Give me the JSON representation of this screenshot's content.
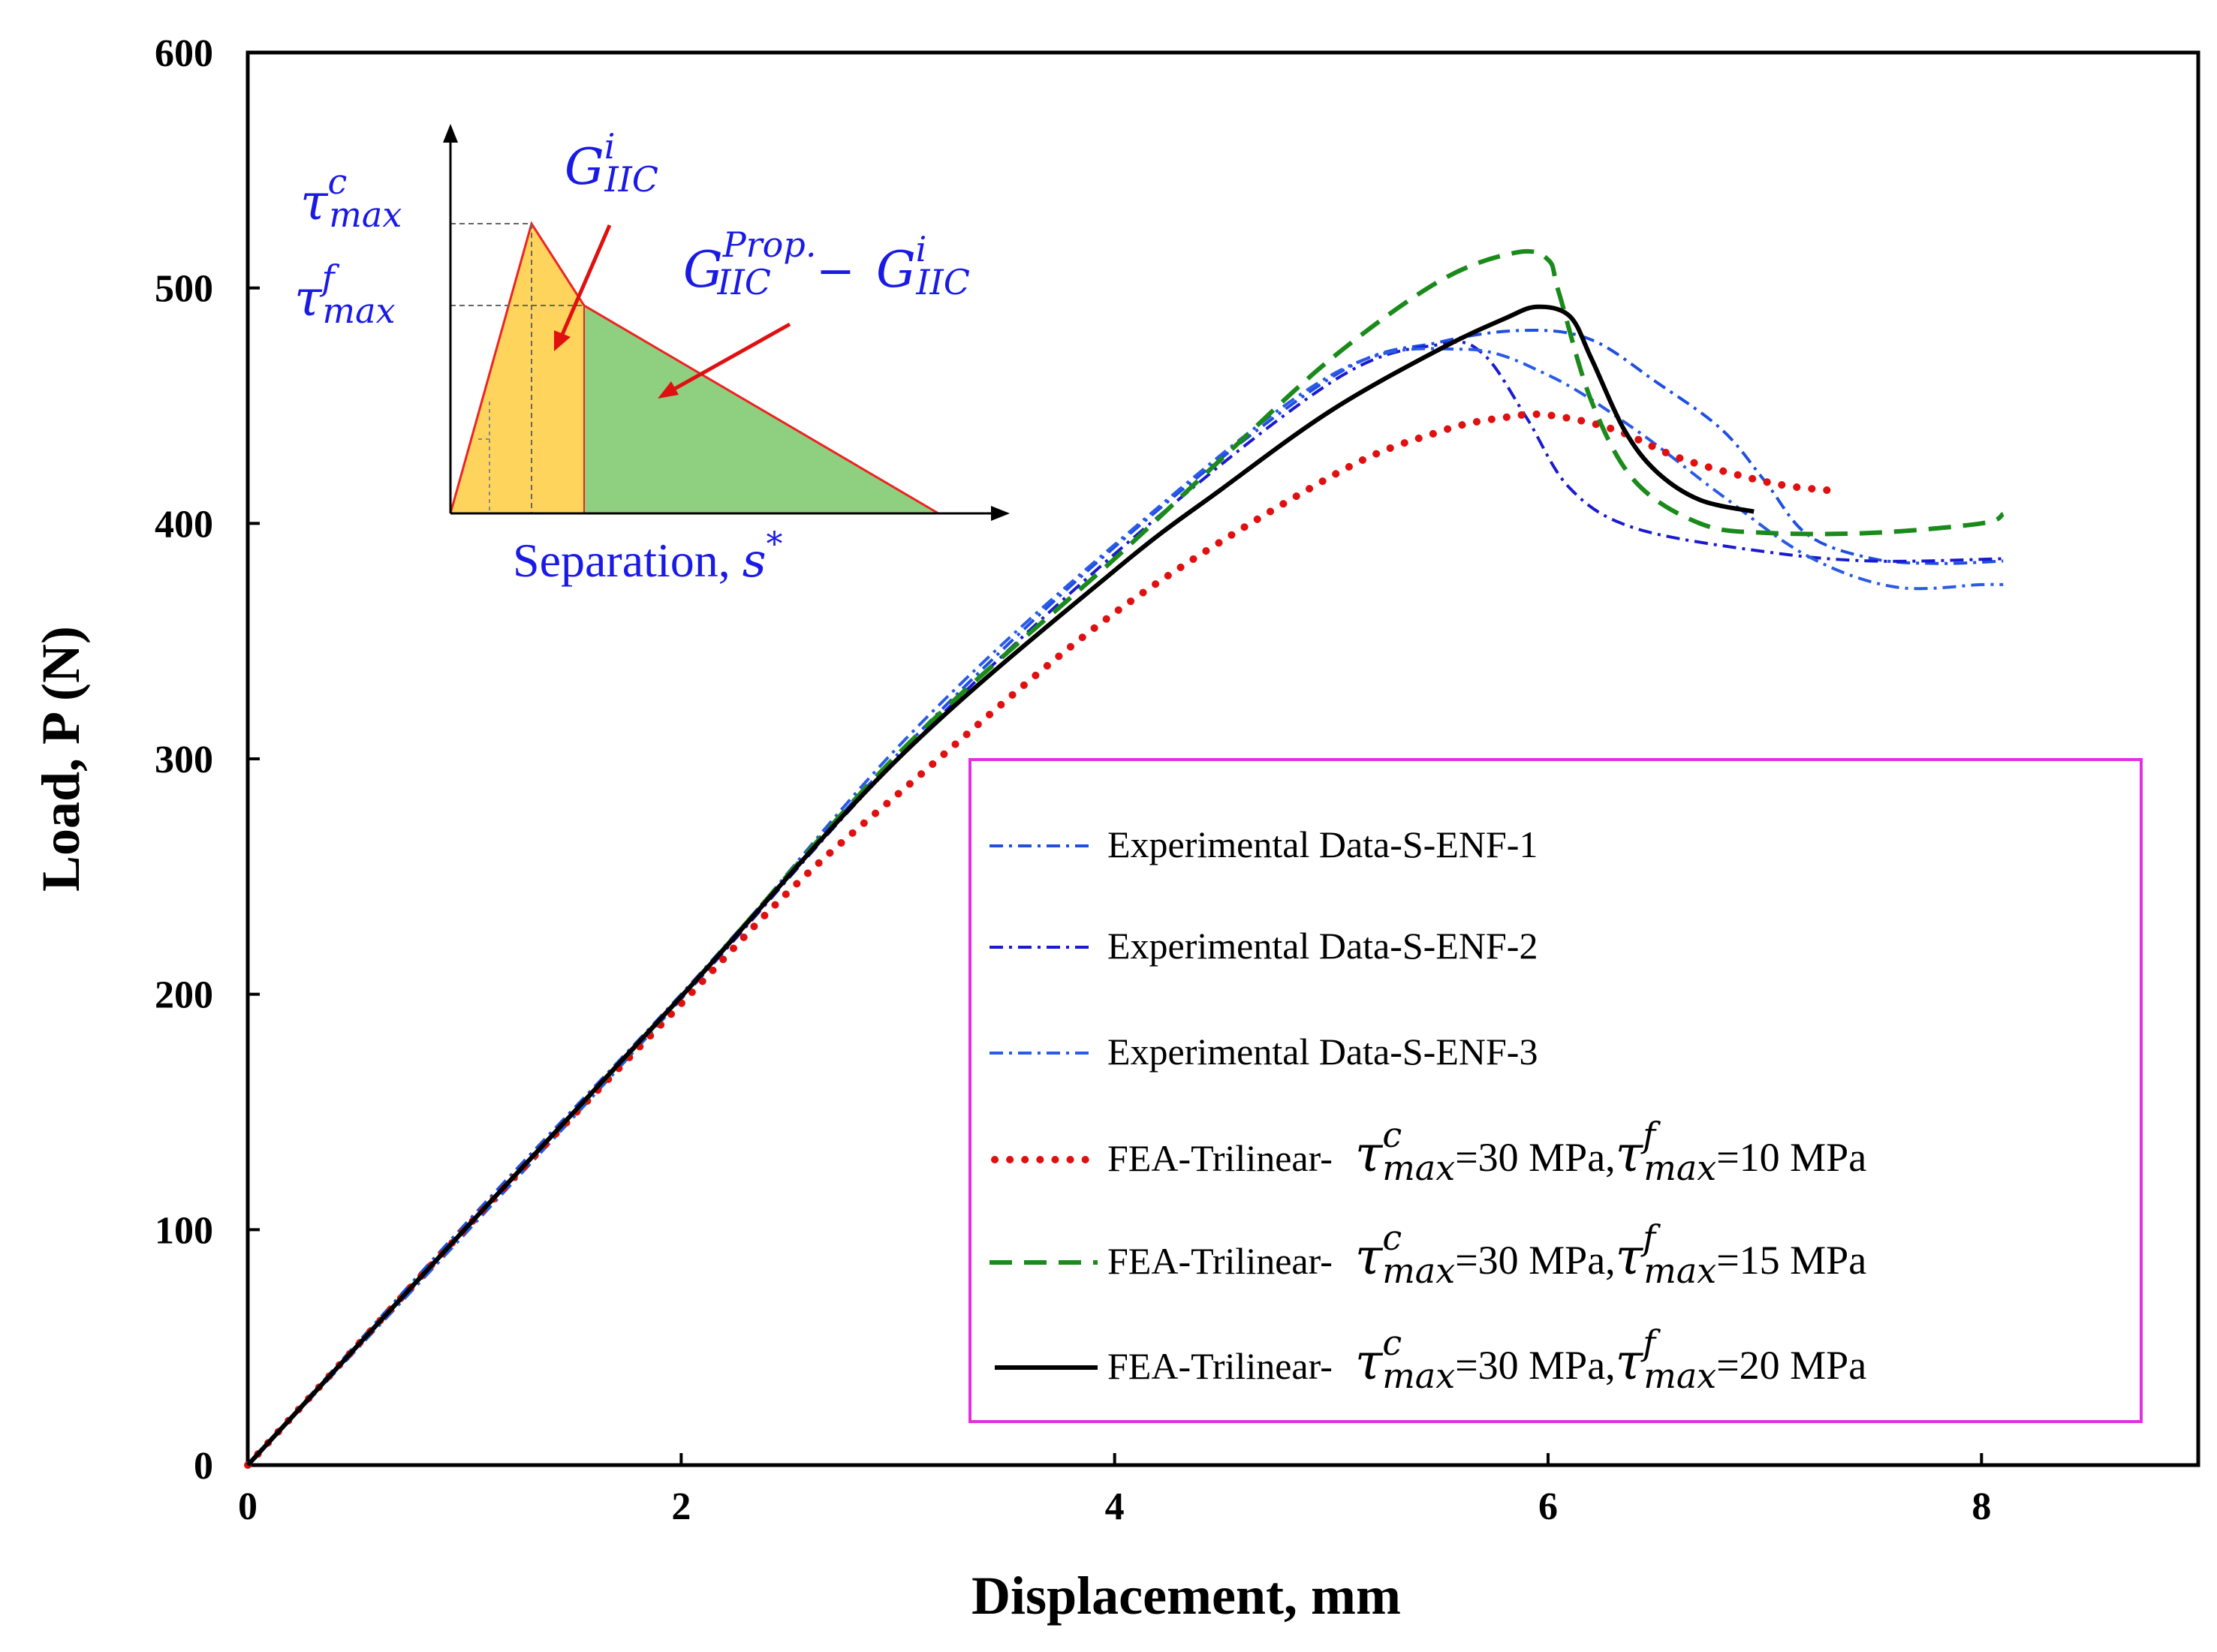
{
  "chart_data": {
    "type": "line",
    "title": "",
    "xlabel": "Displacement, mm",
    "ylabel": "Load, P (N)",
    "xlim": [
      0,
      9
    ],
    "ylim": [
      0,
      600
    ],
    "xticks": [
      0,
      2,
      4,
      6,
      8
    ],
    "yticks": [
      0,
      100,
      200,
      300,
      400,
      500,
      600
    ],
    "grid": false,
    "legend_position": "bottom-right",
    "series": [
      {
        "name": "Experimental Data-S-ENF-1",
        "style": "dashdot",
        "color": "#1f4fe0",
        "x": [
          0,
          1,
          2,
          3,
          4,
          5,
          5.5,
          5.9,
          6.2,
          6.5,
          6.8,
          7.0,
          7.2,
          7.5,
          7.8,
          8.1
        ],
        "y": [
          0,
          102,
          200,
          302,
          390,
          462,
          477,
          482,
          478,
          460,
          440,
          418,
          395,
          385,
          383,
          384
        ]
      },
      {
        "name": "Experimental Data-S-ENF-2",
        "style": "dashdot",
        "color": "#1a1ad0",
        "x": [
          0,
          1,
          2,
          3,
          4,
          5,
          5.5,
          5.7,
          5.9,
          6.1,
          6.4,
          7.0,
          7.5,
          8.1
        ],
        "y": [
          0,
          100,
          198,
          300,
          387,
          460,
          476,
          472,
          445,
          415,
          398,
          388,
          384,
          385
        ]
      },
      {
        "name": "Experimental Data-S-ENF-3",
        "style": "dashdot",
        "color": "#2a5ae8",
        "x": [
          0,
          1,
          2,
          3,
          4,
          5,
          5.6,
          6.0,
          6.4,
          6.8,
          7.2,
          7.6,
          8.0,
          8.1
        ],
        "y": [
          0,
          98,
          198,
          305,
          391,
          463,
          474,
          463,
          440,
          412,
          386,
          373,
          374,
          374
        ]
      },
      {
        "name": "FEA-Trilinear- τ_max^c=30 MPa, τ_max^f=10 MPa",
        "label_prefix": "FEA-Trilinear-",
        "tau_c_value": "=30 MPa,",
        "tau_f_value": "=10 MPa",
        "style": "dotted",
        "color": "#e01010",
        "x": [
          0,
          1,
          2,
          2.5,
          3,
          4,
          5,
          5.5,
          5.8,
          6.0,
          6.3,
          6.6,
          6.9,
          7.1,
          7.3
        ],
        "y": [
          0,
          100,
          196,
          244,
          285,
          362,
          420,
          439,
          445,
          446,
          440,
          428,
          420,
          416,
          414
        ]
      },
      {
        "name": "FEA-Trilinear- τ_max^c=30 MPa, τ_max^f=15 MPa",
        "label_prefix": "FEA-Trilinear-",
        "tau_c_value": "=30 MPa,",
        "tau_f_value": "=15 MPa",
        "style": "dashed",
        "color": "#1a8a1a",
        "x": [
          0,
          1,
          2,
          3,
          4,
          4.5,
          5,
          5.5,
          5.85,
          6.0,
          6.05,
          6.2,
          6.4,
          6.7,
          7.0,
          7.5,
          8.0,
          8.1
        ],
        "y": [
          0,
          100,
          199,
          302,
          385,
          428,
          470,
          503,
          515,
          512,
          498,
          452,
          418,
          400,
          396,
          396,
          400,
          404
        ]
      },
      {
        "name": "FEA-Trilinear- τ_max^c=30 MPa, τ_max^f=20 MPa",
        "label_prefix": "FEA-Trilinear-",
        "tau_c_value": "=30 MPa,",
        "tau_f_value": "=20 MPa",
        "style": "solid",
        "color": "#000000",
        "x": [
          0,
          1,
          2,
          3,
          4,
          4.5,
          5,
          5.5,
          5.8,
          5.95,
          6.1,
          6.2,
          6.35,
          6.5,
          6.7,
          6.95
        ],
        "y": [
          0,
          100,
          199,
          300,
          380,
          415,
          448,
          474,
          487,
          492,
          488,
          470,
          440,
          422,
          410,
          405
        ]
      }
    ],
    "legend_symbol": {
      "tau": "τ",
      "sup_c": "c",
      "sup_f": "f",
      "sub": "max"
    },
    "inset": {
      "xlabel": "Separation, ",
      "xlabel_var": "s",
      "xlabel_sup": "*",
      "tau_c": {
        "symbol": "τ",
        "sup": "c",
        "sub": "max"
      },
      "tau_f": {
        "symbol": "τ",
        "sup": "f",
        "sub": "max"
      },
      "g_init": {
        "symbol": "G",
        "sup": "i",
        "sub": "IIC"
      },
      "g_prop": {
        "symbol": "G",
        "sup": "Prop.",
        "sub": "IIC",
        "minus": "−",
        "symbol2": "G",
        "sup2": "i",
        "sub2": "IIC"
      },
      "colors": {
        "initiation": "#ffd45c",
        "propagation": "#8fcf80",
        "outline": "#ee2222",
        "arrow": "#e01010",
        "text": "#1a1ae6"
      }
    }
  }
}
